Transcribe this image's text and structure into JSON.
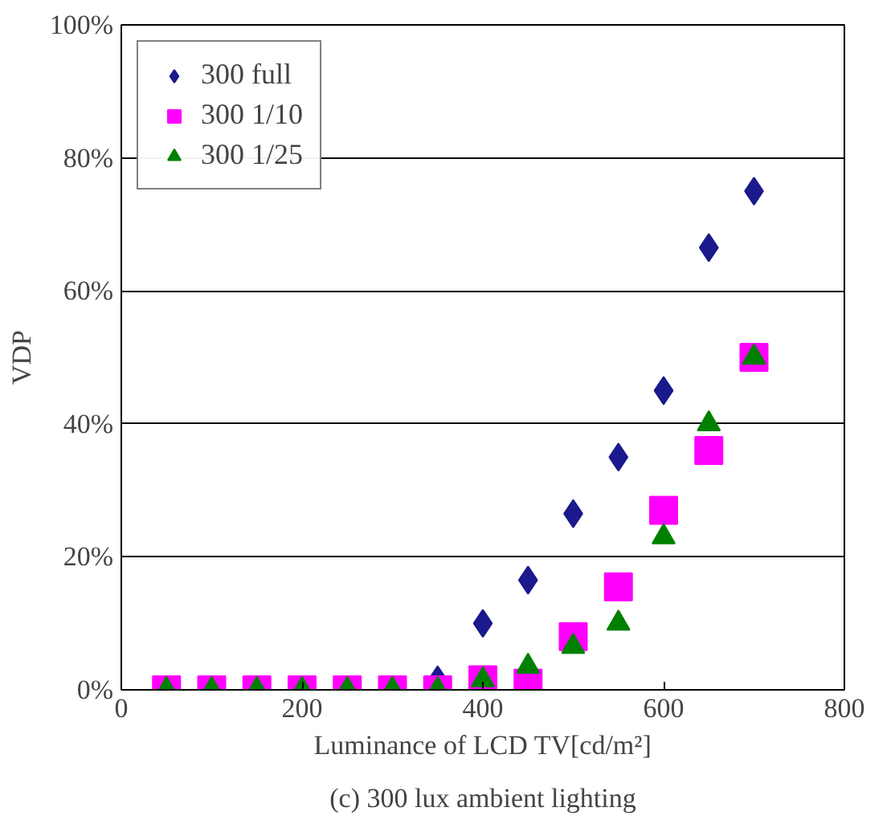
{
  "chart_data": {
    "type": "scatter",
    "xlabel": "Luminance of LCD TV[cd/m²]",
    "ylabel": "VDP",
    "x": [
      50,
      100,
      150,
      200,
      250,
      300,
      350,
      400,
      450,
      500,
      550,
      600,
      650,
      700
    ],
    "series": [
      {
        "name": "300 full",
        "color": "#1a1a8c",
        "marker": "diamond",
        "values": [
          null,
          null,
          null,
          null,
          null,
          null,
          1.5,
          10,
          16.5,
          26.5,
          35,
          45,
          66.5,
          75
        ]
      },
      {
        "name": "300 1/10",
        "color": "#ff00ff",
        "marker": "square",
        "values": [
          0,
          0,
          0,
          0,
          0,
          0,
          0,
          1.5,
          1,
          8,
          15.5,
          27,
          36,
          50
        ]
      },
      {
        "name": "300 1/25",
        "color": "#008000",
        "marker": "triangle",
        "values": [
          0,
          0,
          0,
          0,
          0,
          0,
          0,
          1.5,
          3.5,
          6.5,
          10,
          23,
          40,
          50
        ]
      }
    ],
    "xlim": [
      0,
      800
    ],
    "xticks": [
      0,
      200,
      400,
      600,
      800
    ],
    "ylim": [
      0,
      100
    ],
    "yticks": [
      {
        "value": 0,
        "label": "0%"
      },
      {
        "value": 20,
        "label": "20%"
      },
      {
        "value": 40,
        "label": "40%"
      },
      {
        "value": 60,
        "label": "60%"
      },
      {
        "value": 80,
        "label": "80%"
      },
      {
        "value": 100,
        "label": "100%"
      }
    ],
    "grid": "y",
    "legend": "top left",
    "annotations": [
      "(c) 300 lux ambient lighting"
    ]
  }
}
